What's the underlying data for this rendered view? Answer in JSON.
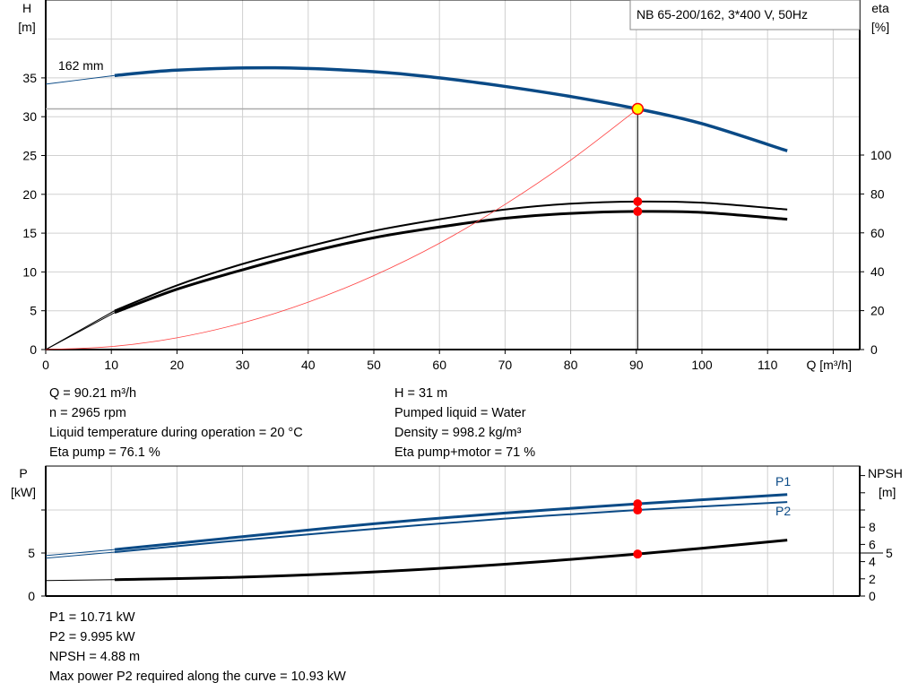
{
  "chart_data": [
    {
      "type": "line",
      "title": "NB 65-200/162, 3*400 V, 50Hz",
      "xlabel": "Q [m³/h]",
      "ylabel_left": [
        "H",
        "[m]"
      ],
      "ylabel_right": [
        "eta",
        "[%]"
      ],
      "xlim": [
        0,
        120
      ],
      "ylim_left": [
        0,
        40
      ],
      "ylim_right_eta": [
        0,
        184
      ],
      "xticks": [
        0,
        10,
        20,
        30,
        40,
        50,
        60,
        70,
        80,
        90,
        100,
        110
      ],
      "yticks_left": [
        0,
        5,
        10,
        15,
        20,
        25,
        30,
        35
      ],
      "yticks_right": [
        0,
        20,
        40,
        60,
        80,
        100
      ],
      "grid": true,
      "impeller_label": "162 mm",
      "series": [
        {
          "key": "H",
          "color": "#0a4a86",
          "axis": "left",
          "points": [
            [
              10.5,
              35.3
            ],
            [
              20,
              36.0
            ],
            [
              35,
              36.3
            ],
            [
              50,
              35.8
            ],
            [
              60,
              35.0
            ],
            [
              70,
              33.9
            ],
            [
              80,
              32.6
            ],
            [
              90.2,
              31.0
            ],
            [
              100,
              29.1
            ],
            [
              113,
              25.6
            ]
          ],
          "extrapolated_from": [
            [
              0,
              34.2
            ],
            [
              10.5,
              35.3
            ]
          ]
        },
        {
          "key": "eta_pump",
          "color": "#000000",
          "axis": "right",
          "points": [
            [
              10.5,
              20
            ],
            [
              20,
              33
            ],
            [
              30,
              44
            ],
            [
              40,
              53
            ],
            [
              50,
              61
            ],
            [
              60,
              67
            ],
            [
              70,
              72
            ],
            [
              80,
              75
            ],
            [
              90.2,
              76.1
            ],
            [
              100,
              75.5
            ],
            [
              113,
              72
            ]
          ],
          "extrapolated_from": [
            [
              0,
              0
            ],
            [
              10.5,
              20
            ]
          ]
        },
        {
          "key": "eta_pump_motor",
          "color": "#000000",
          "axis": "right",
          "points": [
            [
              10.5,
              19
            ],
            [
              20,
              31
            ],
            [
              30,
              41
            ],
            [
              40,
              50
            ],
            [
              50,
              57.5
            ],
            [
              60,
              63
            ],
            [
              70,
              67.5
            ],
            [
              80,
              70
            ],
            [
              90.2,
              71
            ],
            [
              100,
              70.5
            ],
            [
              113,
              67
            ]
          ],
          "extrapolated_from": [
            [
              0,
              0
            ],
            [
              10.5,
              19
            ]
          ]
        },
        {
          "key": "system",
          "color": "#ff4040",
          "axis": "left",
          "points": [
            [
              0,
              0
            ],
            [
              10,
              0.38
            ],
            [
              20,
              1.52
            ],
            [
              30,
              3.43
            ],
            [
              40,
              6.1
            ],
            [
              50,
              9.53
            ],
            [
              60,
              13.7
            ],
            [
              70,
              18.7
            ],
            [
              80,
              24.4
            ],
            [
              90.2,
              31
            ]
          ]
        }
      ],
      "duty_point": {
        "Q": 90.21,
        "H": 31,
        "eta_pump": 76.1,
        "eta_pump_motor": 71
      }
    },
    {
      "type": "line",
      "ylabel_left": [
        "P",
        "[kW]"
      ],
      "ylabel_right": [
        "NPSH",
        "[m]"
      ],
      "xlim": [
        0,
        120
      ],
      "ylim_left": [
        0,
        15
      ],
      "yticks_left": [
        0,
        5
      ],
      "yticks_right": [
        0,
        2,
        4,
        5,
        6,
        8
      ],
      "grid": true,
      "series": [
        {
          "key": "P1",
          "name": "P1",
          "color": "#0a4a86",
          "points": [
            [
              10.5,
              5.4
            ],
            [
              30,
              6.9
            ],
            [
              50,
              8.4
            ],
            [
              70,
              9.65
            ],
            [
              90.2,
              10.71
            ],
            [
              113,
              11.8
            ]
          ],
          "extrapolated_from": [
            [
              0,
              4.7
            ],
            [
              10.5,
              5.4
            ]
          ]
        },
        {
          "key": "P2",
          "name": "P2",
          "color": "#0a4a86",
          "points": [
            [
              10.5,
              5.1
            ],
            [
              30,
              6.5
            ],
            [
              50,
              7.8
            ],
            [
              70,
              9.0
            ],
            [
              90.2,
              9.995
            ],
            [
              113,
              10.93
            ]
          ],
          "extrapolated_from": [
            [
              0,
              4.4
            ],
            [
              10.5,
              5.1
            ]
          ]
        },
        {
          "key": "NPSH",
          "color": "#000000",
          "points": [
            [
              10.5,
              1.9
            ],
            [
              30,
              2.2
            ],
            [
              50,
              2.8
            ],
            [
              70,
              3.7
            ],
            [
              90.2,
              4.88
            ],
            [
              113,
              6.5
            ]
          ],
          "extrapolated_from": [
            [
              0,
              1.8
            ],
            [
              10.5,
              1.9
            ]
          ]
        }
      ]
    }
  ],
  "info_top": {
    "left": [
      "Q = 90.21 m³/h",
      "n = 2965 rpm",
      "Liquid temperature during operation = 20 °C",
      "Eta pump = 76.1 %"
    ],
    "right": [
      "H = 31 m",
      "Pumped liquid = Water",
      "Density = 998.2 kg/m³",
      "Eta pump+motor = 71 %"
    ]
  },
  "info_bottom": [
    "P1 = 10.71 kW",
    "P2 = 9.995 kW",
    "NPSH = 4.88 m",
    "Max power P2 required along the curve = 10.93 kW"
  ],
  "colors": {
    "grid": "#d0d0d0",
    "pump_curve": "#0a4a86",
    "marker": "#ff0000",
    "duty_marker_fill": "#ffff00"
  }
}
